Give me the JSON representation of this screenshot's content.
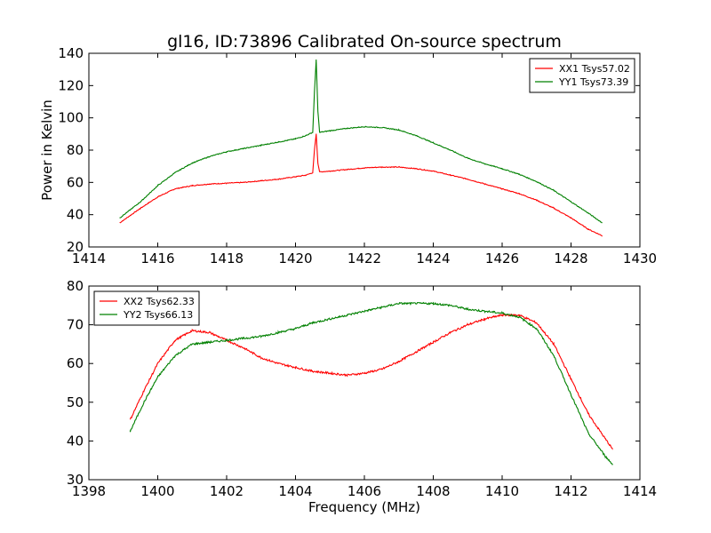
{
  "figure_title": "gl16, ID:73896 Calibrated On-source spectrum",
  "xlabel": "Frequency (MHz)",
  "colors": {
    "xx": "#ff0000",
    "yy": "#008000",
    "frame": "#000000",
    "background": "#ffffff"
  },
  "chart_data": [
    {
      "type": "line",
      "title": "gl16, ID:73896 Calibrated On-source spectrum",
      "xlabel": "",
      "ylabel": "Power in Kelvin",
      "xlim": [
        1414,
        1430
      ],
      "ylim": [
        20,
        140
      ],
      "xticks": [
        "1414",
        "1416",
        "1418",
        "1420",
        "1422",
        "1424",
        "1426",
        "1428",
        "1430"
      ],
      "yticks": [
        "20",
        "40",
        "60",
        "80",
        "100",
        "120",
        "140"
      ],
      "grid": false,
      "legend_position": "top-right",
      "series": [
        {
          "name": "XX1 Tsys57.02",
          "color": "#ff0000",
          "x": [
            1414.9,
            1415.5,
            1416.0,
            1416.5,
            1417.0,
            1417.5,
            1418.0,
            1418.5,
            1419.0,
            1419.5,
            1420.0,
            1420.3,
            1420.5,
            1420.55,
            1420.6,
            1420.65,
            1420.7,
            1421.0,
            1421.5,
            1422.0,
            1422.5,
            1423.0,
            1423.5,
            1424.0,
            1424.5,
            1425.0,
            1425.5,
            1426.0,
            1426.5,
            1427.0,
            1427.5,
            1428.0,
            1428.5,
            1428.9
          ],
          "y": [
            35,
            44,
            51,
            56,
            58,
            59,
            59.5,
            60,
            61,
            62,
            63.5,
            64.5,
            66,
            80,
            90,
            72,
            66.5,
            67,
            68,
            69,
            69.5,
            69.5,
            68.5,
            67,
            64.5,
            62,
            59,
            56,
            53,
            49,
            44,
            38,
            31,
            27
          ]
        },
        {
          "name": "YY1 Tsys73.39",
          "color": "#008000",
          "x": [
            1414.9,
            1415.5,
            1416.0,
            1416.5,
            1417.0,
            1417.5,
            1418.0,
            1418.5,
            1419.0,
            1419.5,
            1420.0,
            1420.3,
            1420.5,
            1420.55,
            1420.6,
            1420.65,
            1420.7,
            1421.0,
            1421.5,
            1422.0,
            1422.5,
            1423.0,
            1423.5,
            1424.0,
            1424.5,
            1425.0,
            1425.5,
            1426.0,
            1426.5,
            1427.0,
            1427.5,
            1428.0,
            1428.5,
            1428.9
          ],
          "y": [
            38,
            48,
            58,
            66,
            72,
            76,
            79,
            81,
            83,
            85,
            87,
            89,
            91,
            116,
            136,
            104,
            91,
            92,
            93.5,
            94.5,
            94,
            92.5,
            89,
            84.5,
            80,
            75,
            71.5,
            68.5,
            65,
            60.5,
            55,
            48,
            41,
            35
          ]
        }
      ]
    },
    {
      "type": "line",
      "title": "",
      "xlabel": "Frequency (MHz)",
      "ylabel": "",
      "xlim": [
        1398,
        1414
      ],
      "ylim": [
        30,
        80
      ],
      "xticks": [
        "1398",
        "1400",
        "1402",
        "1404",
        "1406",
        "1408",
        "1410",
        "1412",
        "1414"
      ],
      "yticks": [
        "30",
        "40",
        "50",
        "60",
        "70",
        "80"
      ],
      "grid": false,
      "legend_position": "top-left",
      "series": [
        {
          "name": "XX2 Tsys62.33",
          "color": "#ff0000",
          "x": [
            1399.2,
            1399.6,
            1400.0,
            1400.5,
            1401.0,
            1401.5,
            1402.0,
            1402.5,
            1403.0,
            1403.5,
            1404.0,
            1404.5,
            1405.0,
            1405.5,
            1406.0,
            1406.5,
            1407.0,
            1407.5,
            1408.0,
            1408.5,
            1409.0,
            1409.5,
            1410.0,
            1410.5,
            1411.0,
            1411.5,
            1412.0,
            1412.5,
            1413.0,
            1413.2
          ],
          "y": [
            45.5,
            53,
            60,
            66,
            68.5,
            68,
            66,
            64,
            61.5,
            60,
            59,
            58,
            57.5,
            57,
            57.5,
            58.5,
            60.5,
            63,
            65.5,
            68,
            70,
            71.5,
            72.5,
            72.5,
            70.5,
            65,
            56,
            47,
            40.5,
            38
          ]
        },
        {
          "name": "YY2 Tsys66.13",
          "color": "#008000",
          "x": [
            1399.2,
            1399.6,
            1400.0,
            1400.5,
            1401.0,
            1401.5,
            1402.0,
            1402.5,
            1403.0,
            1403.5,
            1404.0,
            1404.5,
            1405.0,
            1405.5,
            1406.0,
            1406.5,
            1407.0,
            1407.5,
            1408.0,
            1408.5,
            1409.0,
            1409.5,
            1410.0,
            1410.5,
            1411.0,
            1411.5,
            1412.0,
            1412.5,
            1413.0,
            1413.2
          ],
          "y": [
            42.5,
            50,
            56.5,
            62,
            65,
            65.5,
            66,
            66.5,
            67,
            68,
            69,
            70.5,
            71.5,
            72.5,
            73.5,
            74.5,
            75.5,
            75.5,
            75.5,
            75,
            74,
            73.5,
            73,
            72,
            69,
            62,
            52,
            42,
            36,
            34
          ]
        }
      ]
    }
  ]
}
